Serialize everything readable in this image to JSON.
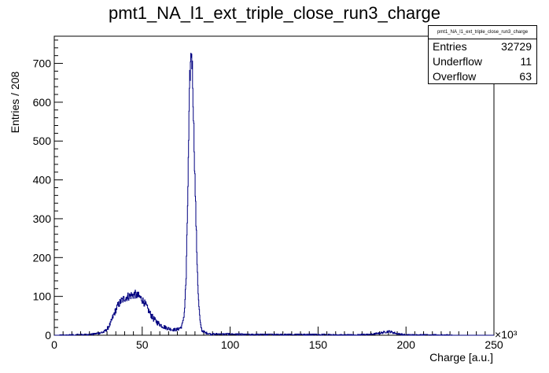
{
  "title": "pmt1_NA_l1_ext_triple_close_run3_charge",
  "stats": {
    "name": "pmt1_NA_l1_ext_triple_close_run3_charge",
    "rows": [
      {
        "label": "Entries",
        "value": "32729"
      },
      {
        "label": "Underflow",
        "value": "11"
      },
      {
        "label": "Overflow",
        "value": "63"
      }
    ]
  },
  "chart_data": {
    "type": "histogram",
    "title": "pmt1_NA_l1_ext_triple_close_run3_charge",
    "xlabel": "Charge [a.u.]",
    "ylabel": "Entries / 208",
    "x_multiplier_label": "×10³",
    "xlim": [
      0,
      250
    ],
    "ylim": [
      0,
      770
    ],
    "x_ticks": [
      0,
      50,
      100,
      150,
      200,
      250
    ],
    "y_ticks": [
      0,
      100,
      200,
      300,
      400,
      500,
      600,
      700
    ],
    "line_color": "#000080",
    "entries": 32729,
    "underflow": 11,
    "overflow": 63,
    "series": [
      {
        "x": [
          0,
          10,
          18,
          22,
          25,
          28,
          30,
          32,
          34,
          36,
          38,
          40,
          42,
          44,
          46,
          48,
          50,
          52,
          54,
          56,
          58,
          60,
          62,
          64,
          66,
          68,
          70,
          72,
          73,
          74,
          75,
          76,
          77,
          77.5,
          78,
          78.5,
          79,
          80,
          81,
          82,
          83,
          84,
          86,
          88,
          90,
          95,
          100,
          110,
          120,
          130,
          140,
          150,
          160,
          170,
          180,
          185,
          188,
          190,
          192,
          195,
          198,
          200,
          210,
          220,
          230,
          240,
          250
        ],
        "y": [
          0,
          1,
          2,
          3,
          5,
          8,
          15,
          30,
          55,
          75,
          88,
          95,
          100,
          103,
          105,
          100,
          92,
          78,
          60,
          45,
          35,
          28,
          22,
          19,
          16,
          14,
          15,
          20,
          30,
          60,
          150,
          380,
          650,
          700,
          735,
          690,
          600,
          400,
          220,
          90,
          30,
          12,
          6,
          4,
          3,
          3,
          3,
          2,
          2,
          2,
          2,
          2,
          1,
          1,
          2,
          5,
          8,
          10,
          8,
          4,
          2,
          1,
          1,
          1,
          0,
          0,
          0
        ]
      }
    ]
  }
}
